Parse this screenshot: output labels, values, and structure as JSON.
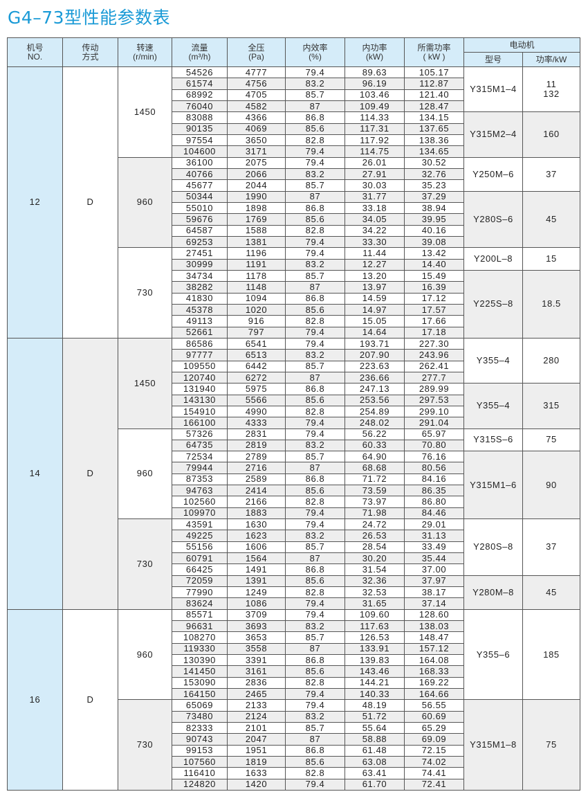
{
  "title": "G4–73型性能参数表",
  "headers": {
    "no": [
      "机号",
      "NO."
    ],
    "drive": [
      "传动",
      "方式"
    ],
    "speed": [
      "转速",
      "(r/min)"
    ],
    "flow": [
      "流量",
      "(m³/h)"
    ],
    "pressure": [
      "全压",
      "(Pa)"
    ],
    "efficiency": [
      "内效率",
      "(%)"
    ],
    "inner_power": [
      "内功率",
      "(kW)"
    ],
    "required_power": [
      "所需功率",
      "( kW )"
    ],
    "motor": "电动机",
    "motor_model": "型号",
    "motor_power": "功率/kW"
  },
  "colors": {
    "title": "#1a9ad6",
    "header_bg": "#d5ecf9",
    "alt_row": "#eeeeee"
  },
  "groups": [
    {
      "no": "12",
      "drive": "D",
      "speeds": [
        {
          "rpm": "1450",
          "motors": [
            {
              "model": "Y315M1–4",
              "power": "11\n132",
              "points": [
                [
                  "54526",
                  "4777",
                  "79.4",
                  "89.63",
                  "105.17"
                ],
                [
                  "61574",
                  "4756",
                  "83.2",
                  "96.19",
                  "112.87"
                ],
                [
                  "68992",
                  "4705",
                  "85.7",
                  "103.46",
                  "121.40"
                ],
                [
                  "76040",
                  "4582",
                  "87",
                  "109.49",
                  "128.47"
                ]
              ]
            },
            {
              "model": "Y315M2–4",
              "power": "160",
              "points": [
                [
                  "83088",
                  "4366",
                  "86.8",
                  "114.33",
                  "134.15"
                ],
                [
                  "90135",
                  "4069",
                  "85.6",
                  "117.31",
                  "137.65"
                ],
                [
                  "97554",
                  "3650",
                  "82.8",
                  "117.92",
                  "138.36"
                ],
                [
                  "104600",
                  "3171",
                  "79.4",
                  "114.75",
                  "134.65"
                ]
              ]
            }
          ]
        },
        {
          "rpm": "960",
          "motors": [
            {
              "model": "Y250M–6",
              "power": "37",
              "points": [
                [
                  "36100",
                  "2075",
                  "79.4",
                  "26.01",
                  "30.52"
                ],
                [
                  "40766",
                  "2066",
                  "83.2",
                  "27.91",
                  "32.76"
                ],
                [
                  "45677",
                  "2044",
                  "85.7",
                  "30.03",
                  "35.23"
                ]
              ]
            },
            {
              "model": "Y280S–6",
              "power": "45",
              "points": [
                [
                  "50344",
                  "1990",
                  "87",
                  "31.77",
                  "37.29"
                ],
                [
                  "55010",
                  "1898",
                  "86.8",
                  "33.18",
                  "38.94"
                ],
                [
                  "59676",
                  "1769",
                  "85.6",
                  "34.05",
                  "39.95"
                ],
                [
                  "64587",
                  "1588",
                  "82.8",
                  "34.22",
                  "40.16"
                ],
                [
                  "69253",
                  "1381",
                  "79.4",
                  "33.30",
                  "39.08"
                ]
              ]
            }
          ]
        },
        {
          "rpm": "730",
          "motors": [
            {
              "model": "Y200L–8",
              "power": "15",
              "points": [
                [
                  "27451",
                  "1196",
                  "79.4",
                  "11.44",
                  "13.42"
                ],
                [
                  "30999",
                  "1191",
                  "83.2",
                  "12.27",
                  "14.40"
                ]
              ]
            },
            {
              "model": "Y225S–8",
              "power": "18.5",
              "points": [
                [
                  "34734",
                  "1178",
                  "85.7",
                  "13.20",
                  "15.49"
                ],
                [
                  "38282",
                  "1148",
                  "87",
                  "13.97",
                  "16.39"
                ],
                [
                  "41830",
                  "1094",
                  "86.8",
                  "14.59",
                  "17.12"
                ],
                [
                  "45378",
                  "1020",
                  "85.6",
                  "14.97",
                  "17.57"
                ],
                [
                  "49113",
                  "916",
                  "82.8",
                  "15.05",
                  "17.66"
                ],
                [
                  "52661",
                  "797",
                  "79.4",
                  "14.64",
                  "17.18"
                ]
              ]
            }
          ]
        }
      ]
    },
    {
      "no": "14",
      "drive": "D",
      "speeds": [
        {
          "rpm": "1450",
          "motors": [
            {
              "model": "Y355–4",
              "power": "280",
              "points": [
                [
                  "86586",
                  "6541",
                  "79.4",
                  "193.71",
                  "227.30"
                ],
                [
                  "97777",
                  "6513",
                  "83.2",
                  "207.90",
                  "243.96"
                ],
                [
                  "109550",
                  "6442",
                  "85.7",
                  "223.63",
                  "262.41"
                ],
                [
                  "120740",
                  "6272",
                  "87",
                  "236.66",
                  "277.7"
                ]
              ]
            },
            {
              "model": "Y355–4",
              "power": "315",
              "points": [
                [
                  "131940",
                  "5975",
                  "86.8",
                  "247.13",
                  "289.99"
                ],
                [
                  "143130",
                  "5566",
                  "85.6",
                  "253.56",
                  "297.53"
                ],
                [
                  "154910",
                  "4990",
                  "82.8",
                  "254.89",
                  "299.10"
                ],
                [
                  "166100",
                  "4333",
                  "79.4",
                  "248.02",
                  "291.04"
                ]
              ]
            }
          ]
        },
        {
          "rpm": "960",
          "motors": [
            {
              "model": "Y315S–6",
              "power": "75",
              "points": [
                [
                  "57326",
                  "2831",
                  "79.4",
                  "56.22",
                  "65.97"
                ],
                [
                  "64735",
                  "2819",
                  "83.2",
                  "60.33",
                  "70.80"
                ]
              ]
            },
            {
              "model": "Y315M1–6",
              "power": "90",
              "points": [
                [
                  "72534",
                  "2789",
                  "85.7",
                  "64.90",
                  "76.16"
                ],
                [
                  "79944",
                  "2716",
                  "87",
                  "68.68",
                  "80.56"
                ],
                [
                  "87353",
                  "2589",
                  "86.8",
                  "71.72",
                  "84.16"
                ],
                [
                  "94763",
                  "2414",
                  "85.6",
                  "73.59",
                  "86.35"
                ],
                [
                  "102560",
                  "2166",
                  "82.8",
                  "73.97",
                  "86.80"
                ],
                [
                  "109970",
                  "1883",
                  "79.4",
                  "71.98",
                  "84.46"
                ]
              ]
            }
          ]
        },
        {
          "rpm": "730",
          "motors": [
            {
              "model": "Y280S–8",
              "power": "37",
              "points": [
                [
                  "43591",
                  "1630",
                  "79.4",
                  "24.72",
                  "29.01"
                ],
                [
                  "49225",
                  "1623",
                  "83.2",
                  "26.53",
                  "31.13"
                ],
                [
                  "55156",
                  "1606",
                  "85.7",
                  "28.54",
                  "33.49"
                ],
                [
                  "60791",
                  "1564",
                  "87",
                  "30.20",
                  "35.44"
                ],
                [
                  "66425",
                  "1491",
                  "86.8",
                  "31.54",
                  "37.00"
                ]
              ]
            },
            {
              "model": "Y280M–8",
              "power": "45",
              "points": [
                [
                  "72059",
                  "1391",
                  "85.6",
                  "32.36",
                  "37.97"
                ],
                [
                  "77990",
                  "1249",
                  "82.8",
                  "32.53",
                  "38.17"
                ],
                [
                  "83624",
                  "1086",
                  "79.4",
                  "31.65",
                  "37.14"
                ]
              ]
            }
          ]
        }
      ]
    },
    {
      "no": "16",
      "drive": "D",
      "speeds": [
        {
          "rpm": "960",
          "motors": [
            {
              "model": "Y355–6",
              "power": "185",
              "points": [
                [
                  "85571",
                  "3709",
                  "79.4",
                  "109.60",
                  "128.60"
                ],
                [
                  "96631",
                  "3693",
                  "83.2",
                  "117.63",
                  "138.03"
                ],
                [
                  "108270",
                  "3653",
                  "85.7",
                  "126.53",
                  "148.47"
                ],
                [
                  "119330",
                  "3558",
                  "87",
                  "133.91",
                  "157.12"
                ],
                [
                  "130390",
                  "3391",
                  "86.8",
                  "139.83",
                  "164.08"
                ],
                [
                  "141450",
                  "3161",
                  "85.6",
                  "143.46",
                  "168.33"
                ],
                [
                  "153090",
                  "2836",
                  "82.8",
                  "144.21",
                  "169.22"
                ],
                [
                  "164150",
                  "2465",
                  "79.4",
                  "140.33",
                  "164.66"
                ]
              ]
            }
          ]
        },
        {
          "rpm": "730",
          "motors": [
            {
              "model": "Y315M1–8",
              "power": "75",
              "points": [
                [
                  "65069",
                  "2133",
                  "79.4",
                  "48.19",
                  "56.55"
                ],
                [
                  "73480",
                  "2124",
                  "83.2",
                  "51.72",
                  "60.69"
                ],
                [
                  "82333",
                  "2101",
                  "85.7",
                  "55.64",
                  "65.29"
                ],
                [
                  "90743",
                  "2047",
                  "87",
                  "58.88",
                  "69.09"
                ],
                [
                  "99153",
                  "1951",
                  "86.8",
                  "61.48",
                  "72.15"
                ],
                [
                  "107560",
                  "1819",
                  "85.6",
                  "63.08",
                  "74.02"
                ],
                [
                  "116410",
                  "1633",
                  "82.8",
                  "63.41",
                  "74.41"
                ],
                [
                  "124820",
                  "1420",
                  "79.4",
                  "61.70",
                  "72.41"
                ]
              ]
            }
          ]
        }
      ]
    }
  ]
}
